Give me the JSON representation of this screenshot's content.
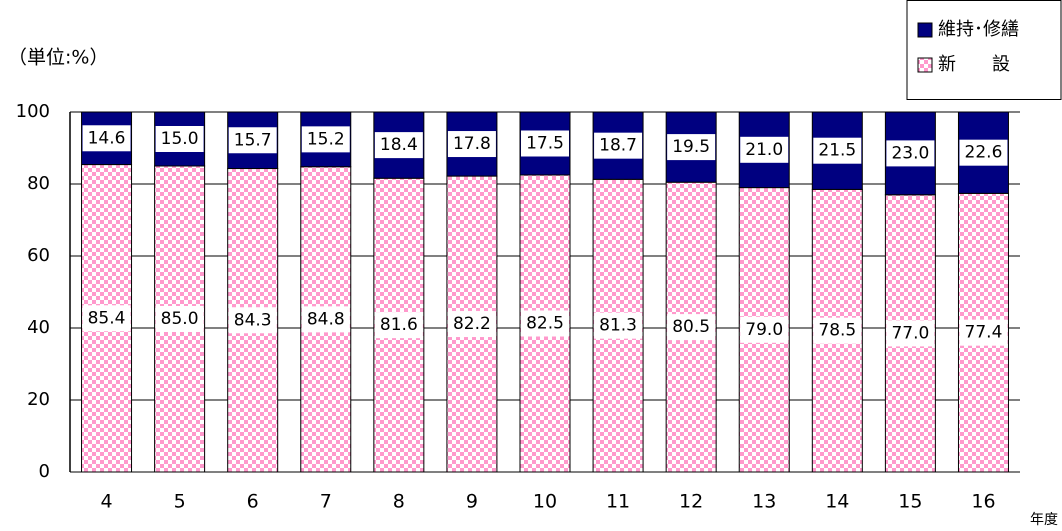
{
  "chart_data": {
    "type": "stacked_bar",
    "y_unit_label": "（単位:%）",
    "x_unit_label": "年度",
    "categories": [
      "4",
      "5",
      "6",
      "7",
      "8",
      "9",
      "10",
      "11",
      "12",
      "13",
      "14",
      "15",
      "16"
    ],
    "series": [
      {
        "name": "新　　設",
        "color": "#ff99cc",
        "fill_pattern": "checker",
        "values": [
          85.4,
          85.0,
          84.3,
          84.8,
          81.6,
          82.2,
          82.5,
          81.3,
          80.5,
          79.0,
          78.5,
          77.0,
          77.4
        ],
        "value_labels": [
          "85.4",
          "85.0",
          "84.3",
          "84.8",
          "81.6",
          "82.2",
          "82.5",
          "81.3",
          "80.5",
          "79.0",
          "78.5",
          "77.0",
          "77.4"
        ]
      },
      {
        "name": "維持･修繕",
        "color": "#000080",
        "values": [
          14.6,
          15.0,
          15.7,
          15.2,
          18.4,
          17.8,
          17.5,
          18.7,
          19.5,
          21.0,
          21.5,
          23.0,
          22.6
        ],
        "value_labels": [
          "14.6",
          "15.0",
          "15.7",
          "15.2",
          "18.4",
          "17.8",
          "17.5",
          "18.7",
          "19.5",
          "21.0",
          "21.5",
          "23.0",
          "22.6"
        ]
      }
    ],
    "ylim": [
      0,
      100
    ],
    "yticks": [
      0,
      20,
      40,
      60,
      80,
      100
    ],
    "grid": true,
    "legend": "top-right"
  }
}
